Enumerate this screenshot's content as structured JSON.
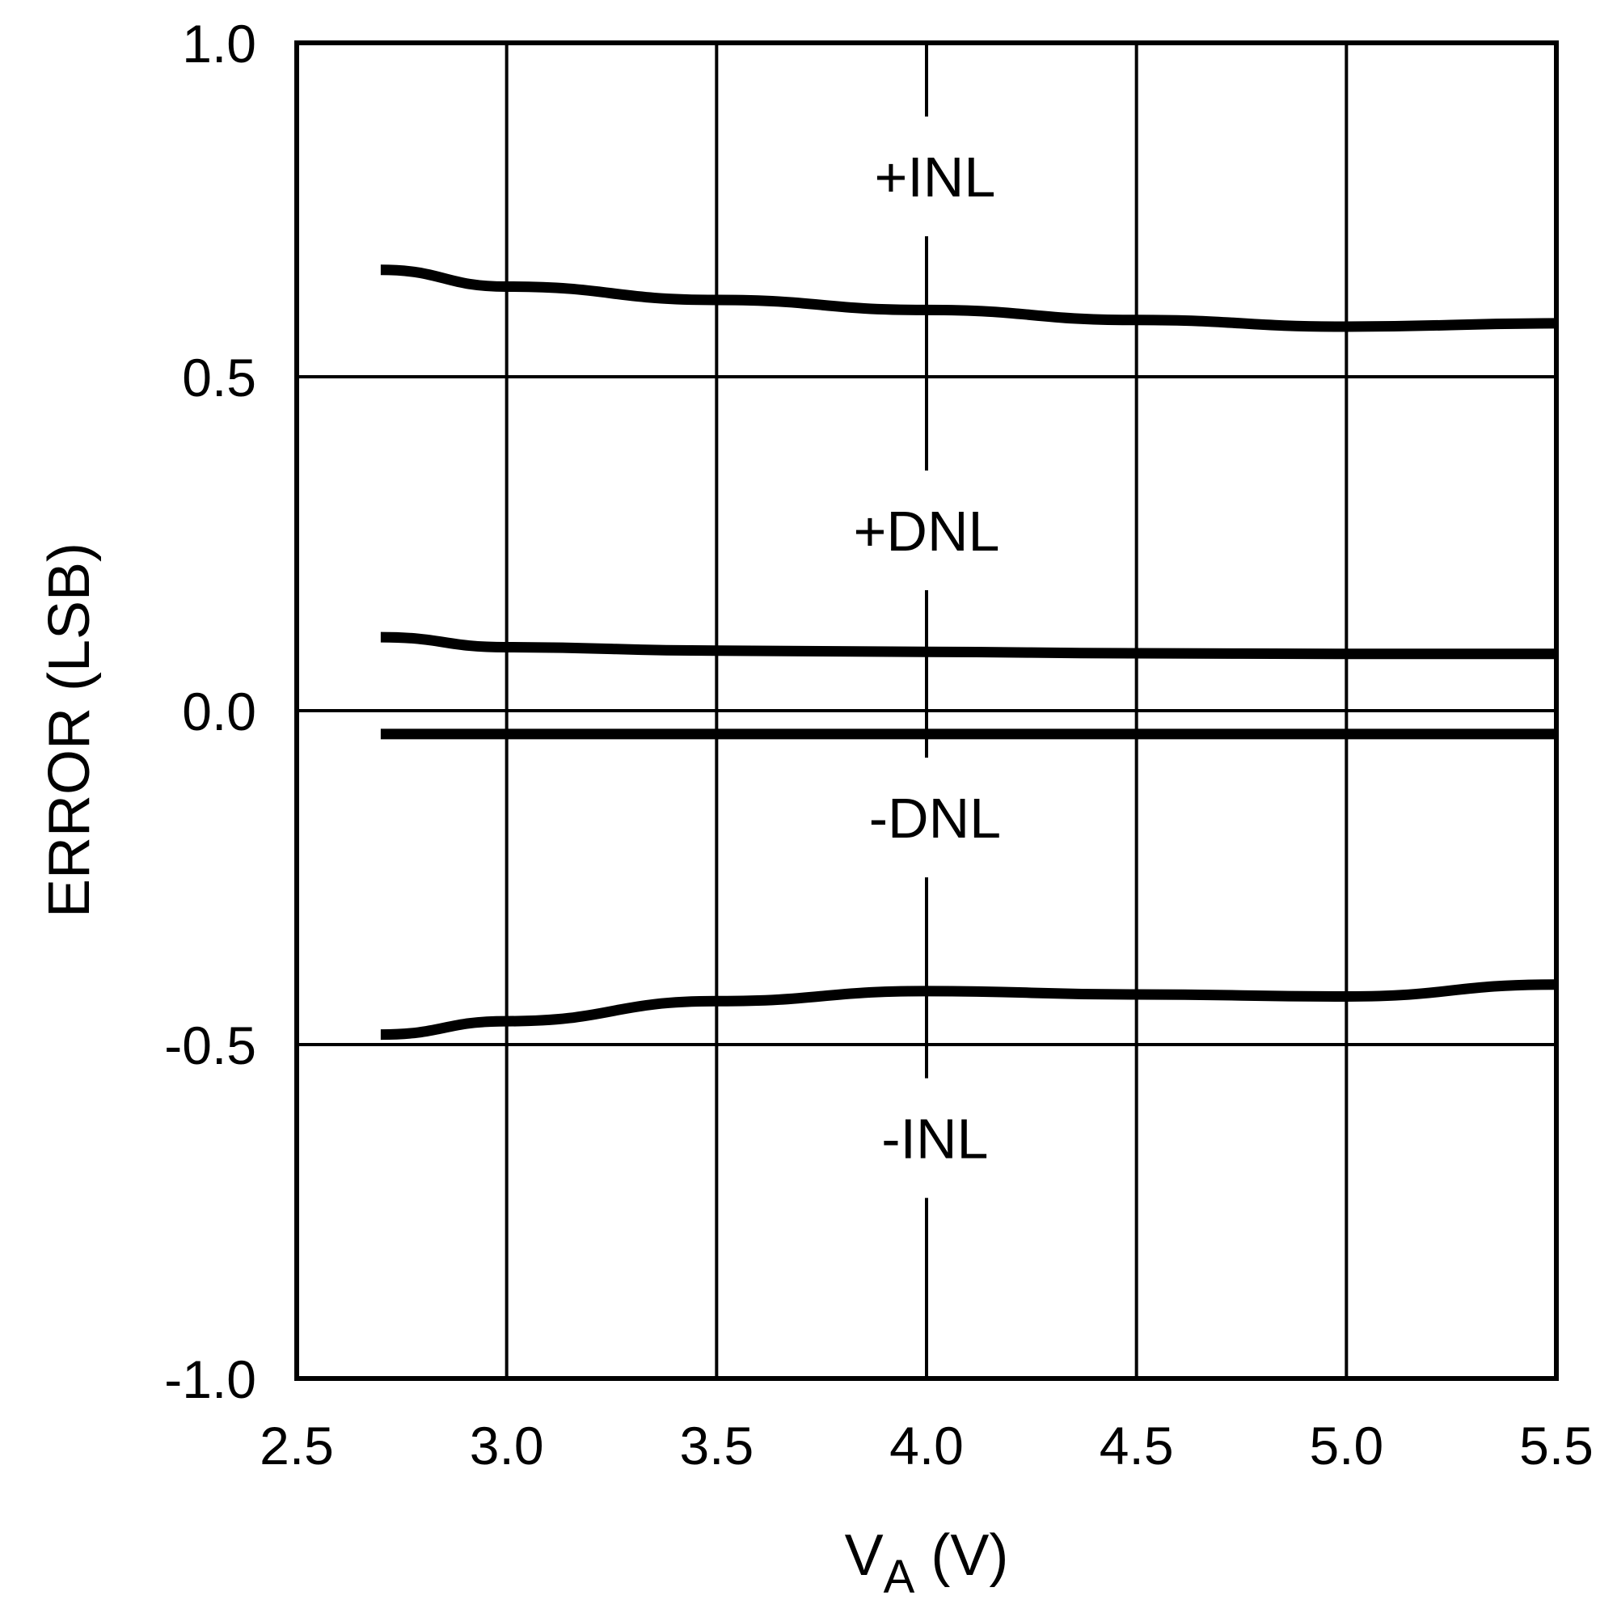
{
  "chart_data": {
    "type": "line",
    "title": "",
    "xlabel": "V",
    "xlabel_subscript": "A",
    "xlabel_unit": " (V)",
    "ylabel": "ERROR (LSB)",
    "xlim": [
      2.5,
      5.5
    ],
    "ylim": [
      -1.0,
      1.0
    ],
    "xticks": [
      "2.5",
      "3.0",
      "3.5",
      "4.0",
      "4.5",
      "5.0",
      "5.5"
    ],
    "yticks": [
      "1.0",
      "0.5",
      "0.0",
      "-0.5",
      "-1.0"
    ],
    "grid": true,
    "series": [
      {
        "name": "+INL",
        "x": [
          2.7,
          3.0,
          3.5,
          4.0,
          4.5,
          5.0,
          5.5
        ],
        "y": [
          0.66,
          0.635,
          0.615,
          0.6,
          0.585,
          0.575,
          0.58
        ]
      },
      {
        "name": "+DNL",
        "x": [
          2.7,
          3.0,
          3.5,
          4.0,
          4.5,
          5.0,
          5.5
        ],
        "y": [
          0.11,
          0.095,
          0.09,
          0.088,
          0.086,
          0.085,
          0.085
        ]
      },
      {
        "name": "-DNL",
        "x": [
          2.7,
          3.0,
          3.5,
          4.0,
          4.5,
          5.0,
          5.5
        ],
        "y": [
          -0.035,
          -0.035,
          -0.035,
          -0.035,
          -0.035,
          -0.035,
          -0.035
        ]
      },
      {
        "name": "-INL",
        "x": [
          2.7,
          3.0,
          3.5,
          4.0,
          4.5,
          5.0,
          5.5
        ],
        "y": [
          -0.485,
          -0.465,
          -0.435,
          -0.42,
          -0.425,
          -0.428,
          -0.41
        ]
      }
    ],
    "annotations": [
      {
        "text": "+INL",
        "x": 4.02,
        "y": 0.8
      },
      {
        "text": "+DNL",
        "x": 4.0,
        "y": 0.27
      },
      {
        "text": "-DNL",
        "x": 4.02,
        "y": -0.16
      },
      {
        "text": "-INL",
        "x": 4.02,
        "y": -0.64
      }
    ]
  }
}
